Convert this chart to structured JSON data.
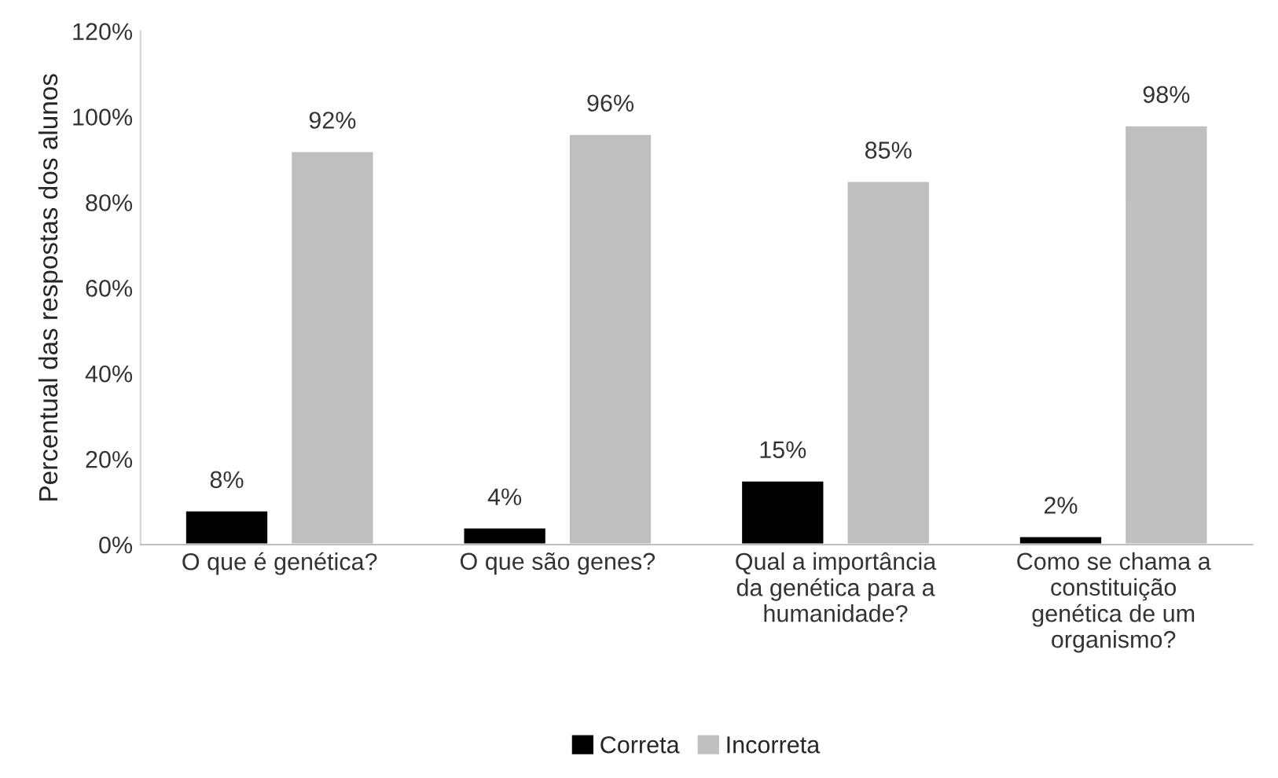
{
  "chart_data": {
    "type": "bar",
    "ylabel": "Percentual das respostas dos alunos",
    "categories": [
      "O que é genética?",
      "O que são genes?",
      "Qual a importância\nda genética para a\nhumanidade?",
      "Como se chama a\nconstituição\ngenética de um\norganismo?"
    ],
    "series": [
      {
        "name": "Correta",
        "color": "#000000",
        "values": [
          8,
          4,
          15,
          2
        ],
        "value_labels": [
          "8%",
          "4%",
          "15%",
          "2%"
        ]
      },
      {
        "name": "Incorreta",
        "color": "#bfbfbf",
        "values": [
          92,
          96,
          85,
          98
        ],
        "value_labels": [
          "92%",
          "96%",
          "85%",
          "98%"
        ]
      }
    ],
    "ylim": [
      0,
      120
    ],
    "yticks": [
      {
        "value": 0,
        "label": "0%"
      },
      {
        "value": 20,
        "label": "20%"
      },
      {
        "value": 40,
        "label": "40%"
      },
      {
        "value": 60,
        "label": "60%"
      },
      {
        "value": 80,
        "label": "80%"
      },
      {
        "value": 100,
        "label": "100%"
      },
      {
        "value": 120,
        "label": "120%"
      }
    ],
    "grid": false,
    "legend": "bottom"
  }
}
